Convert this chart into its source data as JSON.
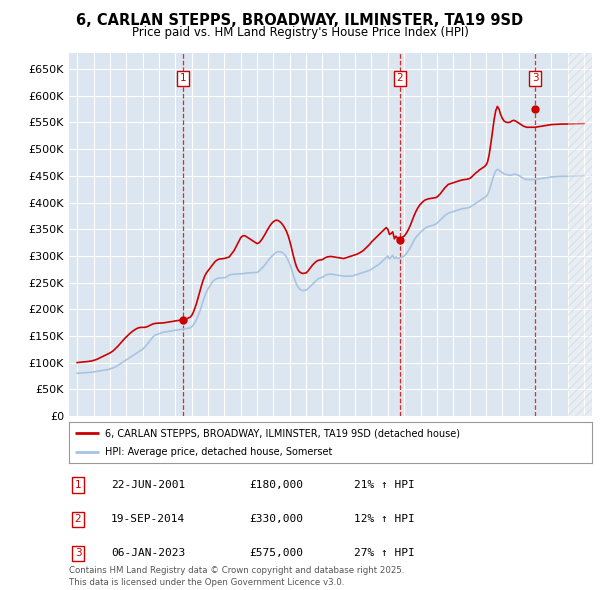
{
  "title": "6, CARLAN STEPPS, BROADWAY, ILMINSTER, TA19 9SD",
  "subtitle": "Price paid vs. HM Land Registry's House Price Index (HPI)",
  "bg_color": "#dce6f0",
  "red_color": "#cc0000",
  "blue_color": "#a8c4e0",
  "sale_date_floats": [
    2001.47,
    2014.72,
    2023.01
  ],
  "sale_prices": [
    180000,
    330000,
    575000
  ],
  "sale_labels": [
    "1",
    "2",
    "3"
  ],
  "table_rows": [
    [
      "1",
      "22-JUN-2001",
      "£180,000",
      "21% ↑ HPI"
    ],
    [
      "2",
      "19-SEP-2014",
      "£330,000",
      "12% ↑ HPI"
    ],
    [
      "3",
      "06-JAN-2023",
      "£575,000",
      "27% ↑ HPI"
    ]
  ],
  "legend_line1": "6, CARLAN STEPPS, BROADWAY, ILMINSTER, TA19 9SD (detached house)",
  "legend_line2": "HPI: Average price, detached house, Somerset",
  "footer": "Contains HM Land Registry data © Crown copyright and database right 2025.\nThis data is licensed under the Open Government Licence v3.0.",
  "ylim": [
    0,
    680000
  ],
  "yticks": [
    0,
    50000,
    100000,
    150000,
    200000,
    250000,
    300000,
    350000,
    400000,
    450000,
    500000,
    550000,
    600000,
    650000
  ],
  "xlim_start": 1994.5,
  "xlim_end": 2026.5,
  "hpi_years": [
    1995.0,
    1995.1,
    1995.2,
    1995.3,
    1995.4,
    1995.5,
    1995.6,
    1995.7,
    1995.8,
    1995.9,
    1996.0,
    1996.1,
    1996.2,
    1996.3,
    1996.4,
    1996.5,
    1996.6,
    1996.7,
    1996.8,
    1996.9,
    1997.0,
    1997.1,
    1997.2,
    1997.3,
    1997.4,
    1997.5,
    1997.6,
    1997.7,
    1997.8,
    1997.9,
    1998.0,
    1998.1,
    1998.2,
    1998.3,
    1998.4,
    1998.5,
    1998.6,
    1998.7,
    1998.8,
    1998.9,
    1999.0,
    1999.1,
    1999.2,
    1999.3,
    1999.4,
    1999.5,
    1999.6,
    1999.7,
    1999.8,
    1999.9,
    2000.0,
    2000.1,
    2000.2,
    2000.3,
    2000.4,
    2000.5,
    2000.6,
    2000.7,
    2000.8,
    2000.9,
    2001.0,
    2001.1,
    2001.2,
    2001.3,
    2001.4,
    2001.5,
    2001.6,
    2001.7,
    2001.8,
    2001.9,
    2002.0,
    2002.1,
    2002.2,
    2002.3,
    2002.4,
    2002.5,
    2002.6,
    2002.7,
    2002.8,
    2002.9,
    2003.0,
    2003.1,
    2003.2,
    2003.3,
    2003.4,
    2003.5,
    2003.6,
    2003.7,
    2003.8,
    2003.9,
    2004.0,
    2004.1,
    2004.2,
    2004.3,
    2004.4,
    2004.5,
    2004.6,
    2004.7,
    2004.8,
    2004.9,
    2005.0,
    2005.1,
    2005.2,
    2005.3,
    2005.4,
    2005.5,
    2005.6,
    2005.7,
    2005.8,
    2005.9,
    2006.0,
    2006.1,
    2006.2,
    2006.3,
    2006.4,
    2006.5,
    2006.6,
    2006.7,
    2006.8,
    2006.9,
    2007.0,
    2007.1,
    2007.2,
    2007.3,
    2007.4,
    2007.5,
    2007.6,
    2007.7,
    2007.8,
    2007.9,
    2008.0,
    2008.1,
    2008.2,
    2008.3,
    2008.4,
    2008.5,
    2008.6,
    2008.7,
    2008.8,
    2008.9,
    2009.0,
    2009.1,
    2009.2,
    2009.3,
    2009.4,
    2009.5,
    2009.6,
    2009.7,
    2009.8,
    2009.9,
    2010.0,
    2010.1,
    2010.2,
    2010.3,
    2010.4,
    2010.5,
    2010.6,
    2010.7,
    2010.8,
    2010.9,
    2011.0,
    2011.1,
    2011.2,
    2011.3,
    2011.4,
    2011.5,
    2011.6,
    2011.7,
    2011.8,
    2011.9,
    2012.0,
    2012.1,
    2012.2,
    2012.3,
    2012.4,
    2012.5,
    2012.6,
    2012.7,
    2012.8,
    2012.9,
    2013.0,
    2013.1,
    2013.2,
    2013.3,
    2013.4,
    2013.5,
    2013.6,
    2013.7,
    2013.8,
    2013.9,
    2014.0,
    2014.1,
    2014.2,
    2014.3,
    2014.4,
    2014.5,
    2014.6,
    2014.7,
    2014.8,
    2014.9,
    2015.0,
    2015.1,
    2015.2,
    2015.3,
    2015.4,
    2015.5,
    2015.6,
    2015.7,
    2015.8,
    2015.9,
    2016.0,
    2016.1,
    2016.2,
    2016.3,
    2016.4,
    2016.5,
    2016.6,
    2016.7,
    2016.8,
    2016.9,
    2017.0,
    2017.1,
    2017.2,
    2017.3,
    2017.4,
    2017.5,
    2017.6,
    2017.7,
    2017.8,
    2017.9,
    2018.0,
    2018.1,
    2018.2,
    2018.3,
    2018.4,
    2018.5,
    2018.6,
    2018.7,
    2018.8,
    2018.9,
    2019.0,
    2019.1,
    2019.2,
    2019.3,
    2019.4,
    2019.5,
    2019.6,
    2019.7,
    2019.8,
    2019.9,
    2020.0,
    2020.1,
    2020.2,
    2020.3,
    2020.4,
    2020.5,
    2020.6,
    2020.7,
    2020.8,
    2020.9,
    2021.0,
    2021.1,
    2021.2,
    2021.3,
    2021.4,
    2021.5,
    2021.6,
    2021.7,
    2021.8,
    2021.9,
    2022.0,
    2022.1,
    2022.2,
    2022.3,
    2022.4,
    2022.5,
    2022.6,
    2022.7,
    2022.8,
    2022.9,
    2023.0,
    2023.1,
    2023.2,
    2023.3,
    2023.4,
    2023.5,
    2023.6,
    2023.7,
    2023.8,
    2023.9,
    2024.0,
    2024.1,
    2024.2,
    2024.3,
    2024.4,
    2024.5,
    2024.6,
    2024.7,
    2024.8,
    2024.9,
    2025.0,
    2025.2,
    2025.4,
    2025.6,
    2025.8,
    2026.0
  ],
  "hpi_values": [
    80000,
    80200,
    80400,
    80600,
    80800,
    81000,
    81200,
    81500,
    81800,
    82000,
    82500,
    83000,
    83500,
    84000,
    84500,
    85000,
    85500,
    86000,
    86500,
    87000,
    88000,
    89000,
    90000,
    91500,
    93000,
    95000,
    97000,
    99000,
    101000,
    103000,
    105000,
    107000,
    109000,
    111000,
    113000,
    115000,
    117000,
    119000,
    121000,
    123000,
    125000,
    128000,
    131000,
    135000,
    139000,
    143000,
    147000,
    150000,
    152000,
    153000,
    154000,
    155000,
    156000,
    157000,
    157500,
    158000,
    158500,
    159000,
    159500,
    160000,
    160500,
    161000,
    161500,
    162000,
    162500,
    163000,
    163500,
    164000,
    164500,
    165000,
    167000,
    170000,
    175000,
    181000,
    188000,
    196000,
    205000,
    215000,
    224000,
    232000,
    238000,
    243000,
    248000,
    252000,
    255000,
    257000,
    258000,
    258500,
    258800,
    258900,
    259000,
    260000,
    262000,
    264000,
    265000,
    265500,
    265800,
    265900,
    265950,
    265980,
    266000,
    266500,
    267000,
    267500,
    268000,
    268200,
    268400,
    268500,
    268600,
    268700,
    269000,
    271000,
    274000,
    277000,
    280000,
    284000,
    288000,
    292000,
    296000,
    299000,
    302000,
    305000,
    307000,
    308000,
    307500,
    307000,
    305000,
    302000,
    298000,
    292000,
    285000,
    276000,
    266000,
    256000,
    248000,
    242000,
    238000,
    236000,
    235000,
    235500,
    236000,
    238000,
    241000,
    244000,
    247000,
    250000,
    253000,
    256000,
    258000,
    259000,
    260000,
    262000,
    264000,
    265000,
    265500,
    266000,
    265500,
    265000,
    264500,
    264000,
    263500,
    263000,
    262500,
    262000,
    262000,
    262000,
    262000,
    262000,
    262500,
    263000,
    264000,
    265000,
    266000,
    267000,
    268000,
    269000,
    270000,
    271000,
    272000,
    273000,
    275000,
    277000,
    279000,
    281000,
    283000,
    285000,
    288000,
    291000,
    294000,
    297000,
    300000,
    294000,
    298000,
    301000,
    295000,
    298000,
    295000,
    296000,
    297000,
    298000,
    300000,
    303000,
    307000,
    312000,
    317000,
    323000,
    329000,
    334000,
    338000,
    341000,
    344000,
    347000,
    350000,
    352000,
    354000,
    355000,
    356000,
    357000,
    358000,
    359000,
    361000,
    364000,
    367000,
    370000,
    373000,
    376000,
    378000,
    380000,
    381000,
    382000,
    383000,
    384000,
    385000,
    386000,
    387000,
    388000,
    388500,
    389000,
    389500,
    390000,
    391000,
    393000,
    395000,
    397000,
    399000,
    401000,
    403000,
    405000,
    407000,
    409000,
    411000,
    415000,
    422000,
    432000,
    443000,
    452000,
    459000,
    462000,
    461000,
    458000,
    456000,
    454000,
    453000,
    452000,
    451000,
    451000,
    452000,
    453000,
    453000,
    452000,
    451000,
    449000,
    447000,
    445000,
    444000,
    443000,
    443000,
    443000,
    443000,
    443000,
    443000,
    443500,
    444000,
    444500,
    445000,
    445500,
    446000,
    446500,
    447000,
    447500,
    448000,
    448200,
    448400,
    448600,
    448800,
    449000,
    449000,
    449000,
    449000,
    449000,
    449000,
    449200,
    449400,
    449600,
    449800,
    450000
  ],
  "red_values": [
    100000,
    100300,
    100600,
    100900,
    101200,
    101500,
    101800,
    102200,
    102700,
    103200,
    104000,
    105000,
    106000,
    107500,
    109000,
    110500,
    112000,
    113500,
    115000,
    116500,
    118000,
    120000,
    122000,
    125000,
    128000,
    131000,
    134500,
    138000,
    141500,
    145000,
    148000,
    151000,
    154000,
    156500,
    159000,
    161000,
    163000,
    164500,
    165500,
    166000,
    166000,
    166000,
    166500,
    167500,
    169000,
    170500,
    172000,
    173000,
    173500,
    173800,
    173900,
    174000,
    174200,
    174500,
    175000,
    175500,
    176000,
    176500,
    177000,
    177500,
    178000,
    178500,
    179000,
    179500,
    180000,
    180500,
    181000,
    182000,
    183500,
    185000,
    188000,
    194000,
    202000,
    211000,
    222000,
    233000,
    244000,
    254000,
    262000,
    268000,
    272000,
    276000,
    280000,
    284000,
    288000,
    291000,
    293000,
    294000,
    294500,
    294800,
    295000,
    296000,
    297000,
    298000,
    302000,
    306000,
    310000,
    316000,
    322000,
    328000,
    334000,
    337000,
    338000,
    337000,
    335000,
    333000,
    331000,
    329000,
    327000,
    325000,
    323000,
    324000,
    327000,
    331000,
    336000,
    341000,
    347000,
    352000,
    357000,
    361000,
    364000,
    366000,
    367000,
    366000,
    364000,
    361000,
    357000,
    352000,
    346000,
    338000,
    328000,
    316000,
    303000,
    291000,
    281000,
    274000,
    270000,
    268000,
    267000,
    267500,
    268000,
    271000,
    275000,
    279000,
    283000,
    286000,
    289000,
    291000,
    292000,
    292500,
    293000,
    295000,
    297000,
    298000,
    298500,
    299000,
    298500,
    298000,
    297500,
    297000,
    296500,
    296000,
    295500,
    295000,
    296000,
    297000,
    298000,
    299000,
    300000,
    301000,
    302000,
    303000,
    304500,
    306000,
    308000,
    310000,
    313000,
    316000,
    319000,
    322000,
    326000,
    329000,
    332000,
    335000,
    338000,
    341000,
    344000,
    347000,
    350000,
    353000,
    350000,
    340000,
    342000,
    345000,
    332000,
    337000,
    332000,
    333000,
    334000,
    335000,
    337000,
    341000,
    346000,
    352000,
    359000,
    367000,
    375000,
    382000,
    388000,
    393000,
    397000,
    400000,
    403000,
    405000,
    406000,
    407000,
    407500,
    408000,
    408500,
    409000,
    410000,
    413000,
    416000,
    420000,
    424000,
    428000,
    431000,
    434000,
    435000,
    436000,
    437000,
    438000,
    439000,
    440000,
    441000,
    442000,
    442500,
    443000,
    443500,
    444000,
    445000,
    447000,
    450000,
    453000,
    456000,
    458000,
    461000,
    463000,
    465000,
    467000,
    470000,
    476000,
    490000,
    510000,
    532000,
    555000,
    572000,
    580000,
    575000,
    565000,
    558000,
    553000,
    551000,
    550000,
    550000,
    551000,
    553000,
    554000,
    553000,
    551000,
    549000,
    547000,
    545000,
    543000,
    542000,
    541000,
    541000,
    541000,
    541000,
    541000,
    541000,
    541500,
    542000,
    542500,
    543000,
    543500,
    544000,
    544500,
    545000,
    545500,
    546000,
    546200,
    546400,
    546600,
    546800,
    547000,
    547000,
    547000,
    547000,
    547000,
    547000,
    547200,
    547400,
    547600,
    547800,
    548000
  ]
}
